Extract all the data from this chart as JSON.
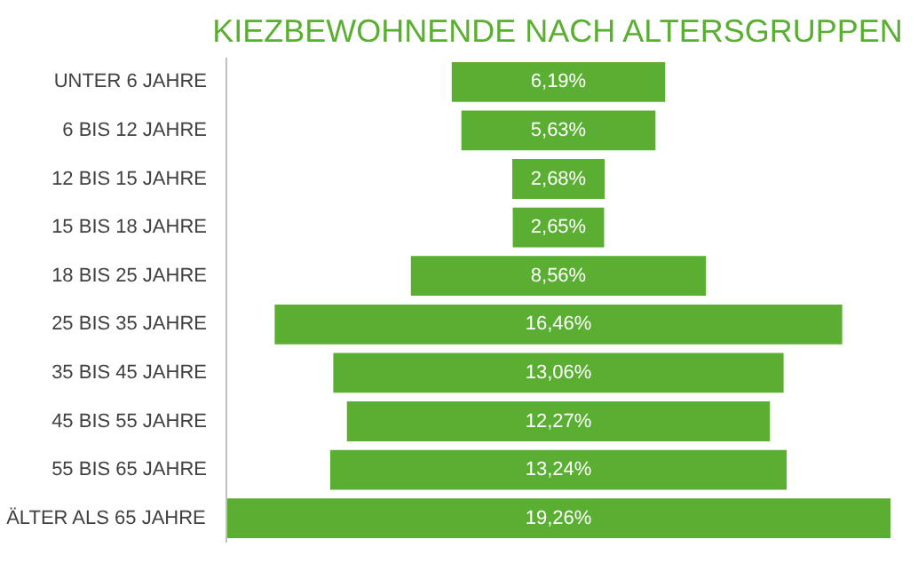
{
  "chart_data": {
    "type": "other",
    "title": "KIEZBEWOHNENDE NACH ALTERSGRUPPEN",
    "categories": [
      "UNTER 6 JAHRE",
      "6 BIS 12 JAHRE",
      "12 BIS 15 JAHRE",
      "15 BIS 18 JAHRE",
      "18 BIS 25 JAHRE",
      "25 BIS 35 JAHRE",
      "35 BIS 45 JAHRE",
      "45 BIS 55 JAHRE",
      "55 BIS 65 JAHRE",
      "ÄLTER ALS 65 JAHRE"
    ],
    "values": [
      6.19,
      5.63,
      2.68,
      2.65,
      8.56,
      16.46,
      13.06,
      12.27,
      13.24,
      19.26
    ],
    "value_labels": [
      "6,19%",
      "5,63%",
      "2,68%",
      "2,65%",
      "8,56%",
      "16,46%",
      "13,06%",
      "12,27%",
      "13,24%",
      "19,26%"
    ],
    "color": "#5aae32"
  }
}
